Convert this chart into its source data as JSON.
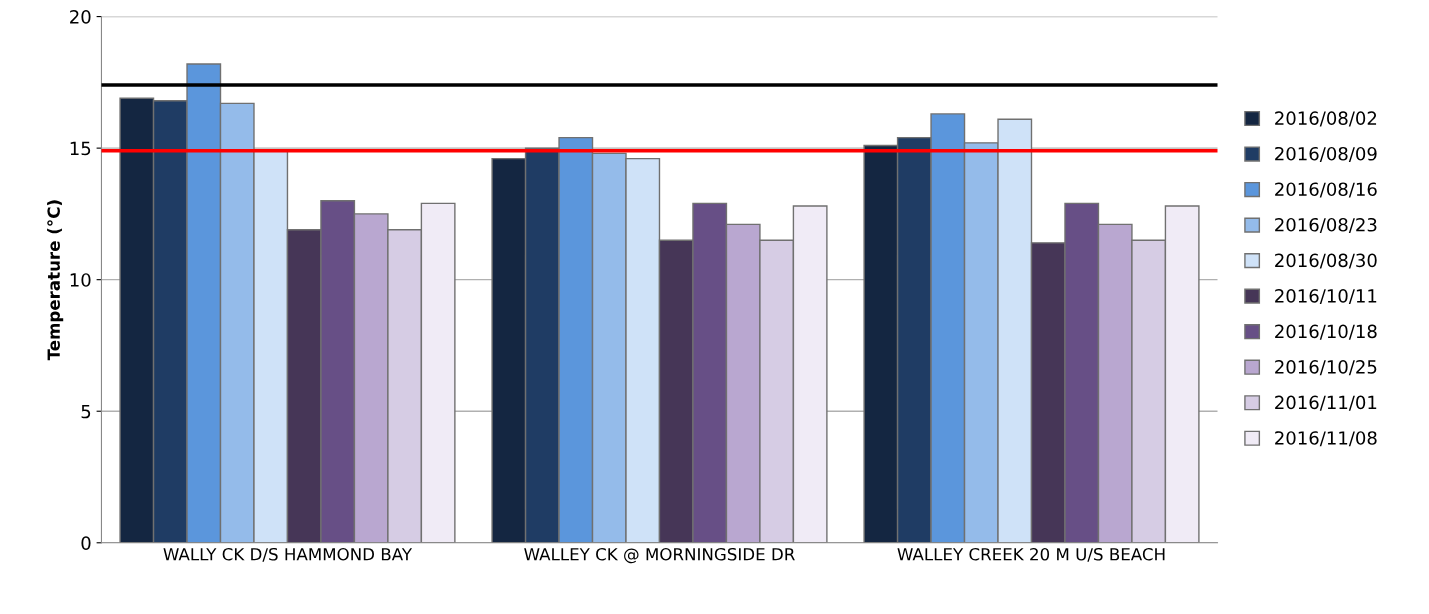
{
  "chart_data": {
    "type": "bar",
    "ylabel": "Temperature (°C)",
    "categories": [
      "WALLY CK D/S HAMMOND BAY",
      "WALLEY CK @ MORNINGSIDE DR",
      "WALLEY CREEK 20 M U/S BEACH"
    ],
    "series": [
      {
        "name": "2016/08/02",
        "color": "#142641",
        "values": [
          16.9,
          14.6,
          15.1
        ]
      },
      {
        "name": "2016/08/09",
        "color": "#1f3c64",
        "values": [
          16.8,
          15.0,
          15.4
        ]
      },
      {
        "name": "2016/08/16",
        "color": "#5b96dc",
        "values": [
          18.2,
          15.4,
          16.3
        ]
      },
      {
        "name": "2016/08/23",
        "color": "#94bbea",
        "values": [
          16.7,
          14.8,
          15.2
        ]
      },
      {
        "name": "2016/08/30",
        "color": "#cfe2f8",
        "values": [
          14.9,
          14.6,
          16.1
        ]
      },
      {
        "name": "2016/10/11",
        "color": "#463657",
        "values": [
          11.9,
          11.5,
          11.4
        ]
      },
      {
        "name": "2016/10/18",
        "color": "#674f86",
        "values": [
          13.0,
          12.9,
          12.9
        ]
      },
      {
        "name": "2016/10/25",
        "color": "#b9a7d0",
        "values": [
          12.5,
          12.1,
          12.1
        ]
      },
      {
        "name": "2016/11/01",
        "color": "#d6cce4",
        "values": [
          11.9,
          11.5,
          11.5
        ]
      },
      {
        "name": "2016/11/08",
        "color": "#f0ebf6",
        "values": [
          12.9,
          12.8,
          12.8
        ]
      }
    ],
    "ylim": [
      0,
      20
    ],
    "yticks": [
      0,
      5,
      10,
      15,
      20
    ],
    "grid": "y",
    "legend": "right",
    "ref_lines": [
      {
        "axis": "y",
        "value": 17.4,
        "color": "#000000"
      },
      {
        "axis": "y",
        "value": 14.9,
        "color": "#ff0000"
      }
    ]
  }
}
